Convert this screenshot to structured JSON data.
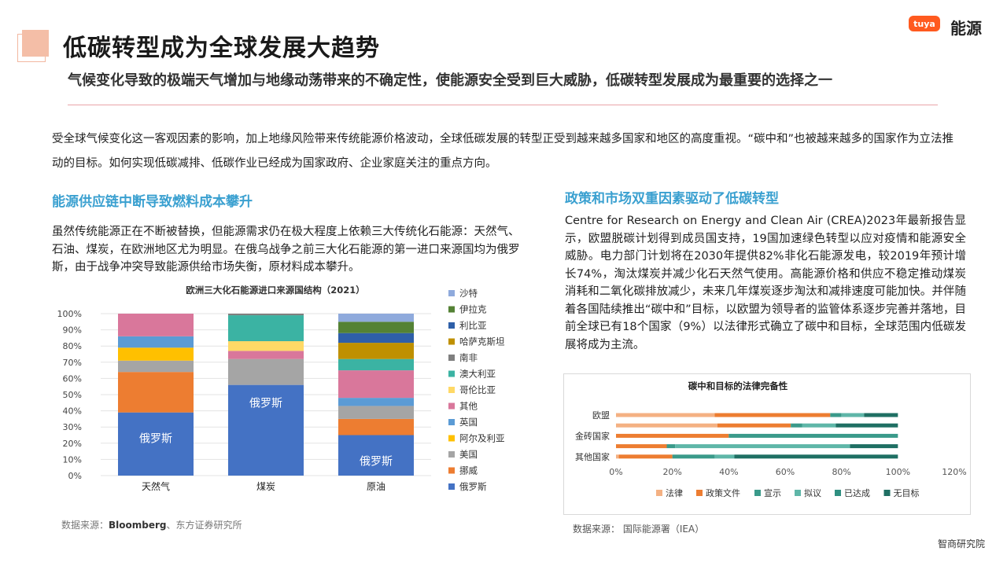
{
  "header": {
    "title": "低碳转型成为全球发展大趋势",
    "subtitle": "气候变化导致的极端天气增加与地缘动荡带来的不确定性，使能源安全受到巨大威胁，低碳转型发展成为最重要的选择之一",
    "logo_tuya": "tuya",
    "logo_nengyuan": "能源"
  },
  "intro": "受全球气候变化这一客观因素的影响，加上地缘风险带来传统能源价格波动，全球低碳发展的转型正受到越来越多国家和地区的高度重视。“碳中和”也被越来越多的国家作为立法推动的目标。如何实现低碳减排、低碳作业已经成为国家政府、企业家庭关注的重点方向。",
  "left": {
    "heading": "能源供应链中断导致燃料成本攀升",
    "paragraph": "虽然传统能源正在不断被替换，但能源需求仍在极大程度上依赖三大传统化石能源：天然气、石油、煤炭，在欧洲地区尤为明显。在俄乌战争之前三大化石能源的第一进口来源国均为俄罗斯，由于战争冲突导致能源供给市场失衡，原材料成本攀升。",
    "source_prefix": "数据来源：",
    "source_bold": "Bloomberg",
    "source_rest": "、东方证券研究所"
  },
  "right": {
    "heading": "政策和市场双重因素驱动了低碳转型",
    "paragraph": "Centre for Research on Energy and Clean Air (CREA)2023年最新报告显示，欧盟脱碳计划得到成员国支持，19国加速绿色转型以应对疫情和能源安全威胁。电力部门计划将在2030年提供82%非化石能源发电，较2019年预计增长74%，淘汰煤炭并减少化石天然气使用。高能源价格和供应不稳定推动煤炭消耗和二氧化碳排放减少，未来几年煤炭逐步淘汰和减排速度可能加快。并伴随着各国陆续推出“碳中和”目标，以欧盟为领导者的监管体系逐步完善并落地，目前全球已有18个国家（9%）以法律形式确立了碳中和目标，全球范围内低碳发展将成为主流。",
    "source": "数据来源：  国际能源署（IEA）"
  },
  "brand": "智商研究院",
  "chart_data": [
    {
      "type": "bar",
      "stacked": true,
      "title": "欧洲三大化石能源进口来源国结构（2021）",
      "categories": [
        "天然气",
        "煤炭",
        "原油"
      ],
      "ylim": [
        0,
        100
      ],
      "yticks": [
        "0%",
        "10%",
        "20%",
        "30%",
        "40%",
        "50%",
        "60%",
        "70%",
        "80%",
        "90%",
        "100%"
      ],
      "bar_label": "俄罗斯",
      "legend_position": "right",
      "series": [
        {
          "name": "俄罗斯",
          "color": "#4472c4",
          "values": [
            39,
            56,
            25
          ]
        },
        {
          "name": "挪威",
          "color": "#ed7d31",
          "values": [
            25,
            0,
            10
          ]
        },
        {
          "name": "美国",
          "color": "#a5a5a5",
          "values": [
            7,
            16,
            8
          ]
        },
        {
          "name": "阿尔及利亚",
          "color": "#ffc000",
          "values": [
            8,
            0,
            0
          ]
        },
        {
          "name": "英国",
          "color": "#5b9bd5",
          "values": [
            7,
            0,
            5
          ]
        },
        {
          "name": "其他",
          "color": "#d9779b",
          "values": [
            14,
            5,
            17
          ]
        },
        {
          "name": "哥伦比亚",
          "color": "#ffd966",
          "values": [
            0,
            6,
            0
          ]
        },
        {
          "name": "澳大利亚",
          "color": "#3bb3a3",
          "values": [
            0,
            16,
            7
          ]
        },
        {
          "name": "南非",
          "color": "#7f7f7f",
          "values": [
            0,
            1,
            0
          ]
        },
        {
          "name": "哈萨克斯坦",
          "color": "#bf9000",
          "values": [
            0,
            0,
            10
          ]
        },
        {
          "name": "利比亚",
          "color": "#2e5fa8",
          "values": [
            0,
            0,
            6
          ]
        },
        {
          "name": "伊拉克",
          "color": "#548235",
          "values": [
            0,
            0,
            7
          ]
        },
        {
          "name": "沙特",
          "color": "#8faadc",
          "values": [
            0,
            0,
            5
          ]
        }
      ]
    },
    {
      "type": "bar",
      "orientation": "horizontal",
      "stacked": true,
      "title": "碳中和目标的法律完备性",
      "categories": [
        "欧盟",
        "",
        "金砖国家",
        "",
        "其他国家"
      ],
      "xlim": [
        0,
        120
      ],
      "xticks": [
        "0%",
        "20%",
        "40%",
        "60%",
        "80%",
        "100%",
        "120%"
      ],
      "legend_position": "bottom",
      "series": [
        {
          "name": "法律",
          "color": "#f4b183",
          "values": [
            35,
            36,
            0,
            0,
            1
          ]
        },
        {
          "name": "政策文件",
          "color": "#ed7d31",
          "values": [
            41,
            26,
            40,
            18,
            19
          ]
        },
        {
          "name": "宣示",
          "color": "#3a9a8a",
          "values": [
            4,
            4,
            60,
            3,
            15
          ]
        },
        {
          "name": "拟议",
          "color": "#5fb6a8",
          "values": [
            8,
            12,
            0,
            62,
            7
          ]
        },
        {
          "name": "已达成",
          "color": "#2f8f80",
          "values": [
            0,
            0,
            0,
            0,
            0
          ]
        },
        {
          "name": "无目标",
          "color": "#1f6f63",
          "values": [
            12,
            22,
            0,
            17,
            58
          ]
        }
      ]
    }
  ]
}
